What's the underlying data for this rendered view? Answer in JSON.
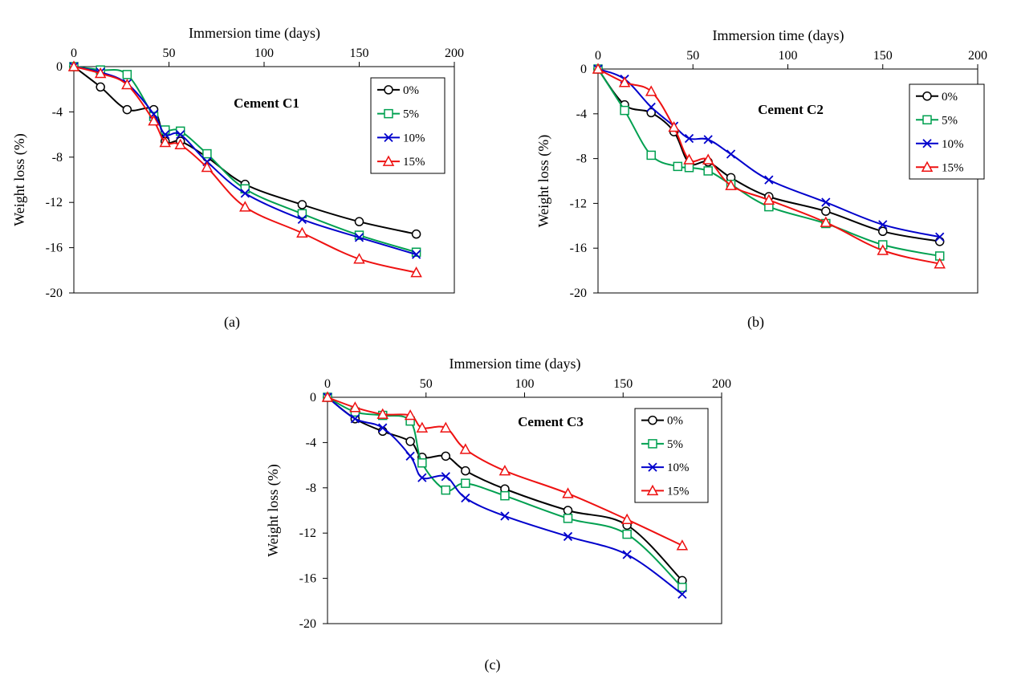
{
  "figure": {
    "captions": [
      "(a)",
      "(b)",
      "(c)"
    ]
  },
  "chart_data": [
    {
      "type": "line",
      "title": "Cement C1",
      "xlabel": "Immersion time (days)",
      "ylabel": "Weight loss (%)",
      "xlim": [
        0,
        200
      ],
      "ylim": [
        -20,
        0
      ],
      "xticks": [
        0,
        50,
        100,
        150,
        200
      ],
      "yticks": [
        0,
        -4,
        -8,
        -12,
        -16,
        -20
      ],
      "x_axis_position": "top",
      "grid": false,
      "legend_position": "top-right",
      "series": [
        {
          "name": "0%",
          "color": "#000000",
          "marker": "circle",
          "x": [
            0,
            14,
            28,
            42,
            48,
            56,
            70,
            90,
            120,
            150,
            180
          ],
          "y": [
            0,
            -1.8,
            -3.8,
            -3.8,
            -6.6,
            -6.6,
            -8.0,
            -10.4,
            -12.2,
            -13.7,
            -14.8
          ]
        },
        {
          "name": "5%",
          "color": "#00A050",
          "marker": "square",
          "x": [
            0,
            14,
            28,
            42,
            48,
            56,
            70,
            90,
            120,
            150,
            180
          ],
          "y": [
            0,
            -0.3,
            -0.7,
            -4.4,
            -5.6,
            -5.7,
            -7.7,
            -10.8,
            -13.0,
            -14.9,
            -16.4
          ]
        },
        {
          "name": "10%",
          "color": "#0000CC",
          "marker": "x",
          "x": [
            0,
            14,
            28,
            42,
            48,
            56,
            70,
            90,
            120,
            150,
            180
          ],
          "y": [
            0,
            -0.5,
            -1.5,
            -4.2,
            -6.0,
            -6.0,
            -8.4,
            -11.2,
            -13.5,
            -15.1,
            -16.6
          ]
        },
        {
          "name": "15%",
          "color": "#EE1111",
          "marker": "triangle",
          "x": [
            0,
            14,
            28,
            42,
            48,
            56,
            70,
            90,
            120,
            150,
            180
          ],
          "y": [
            0,
            -0.6,
            -1.6,
            -4.8,
            -6.7,
            -6.9,
            -8.9,
            -12.4,
            -14.7,
            -17.0,
            -18.2
          ]
        }
      ]
    },
    {
      "type": "line",
      "title": "Cement C2",
      "xlabel": "Immersion time (days)",
      "ylabel": "Weight loss (%)",
      "xlim": [
        0,
        200
      ],
      "ylim": [
        -20,
        0
      ],
      "xticks": [
        0,
        50,
        100,
        150,
        200
      ],
      "yticks": [
        0,
        -4,
        -8,
        -12,
        -16,
        -20
      ],
      "x_axis_position": "top",
      "grid": false,
      "legend_position": "top-right",
      "series": [
        {
          "name": "0%",
          "color": "#000000",
          "marker": "circle",
          "x": [
            0,
            14,
            28,
            40,
            48,
            58,
            70,
            90,
            120,
            150,
            180
          ],
          "y": [
            0,
            -3.2,
            -3.9,
            -5.6,
            -8.4,
            -8.3,
            -9.7,
            -11.4,
            -12.7,
            -14.5,
            -15.4
          ]
        },
        {
          "name": "5%",
          "color": "#00A050",
          "marker": "square",
          "x": [
            0,
            14,
            28,
            42,
            48,
            58,
            70,
            90,
            120,
            150,
            180
          ],
          "y": [
            0,
            -3.7,
            -7.7,
            -8.7,
            -8.8,
            -9.1,
            -10.3,
            -12.3,
            -13.8,
            -15.7,
            -16.7
          ]
        },
        {
          "name": "10%",
          "color": "#0000CC",
          "marker": "x",
          "x": [
            0,
            14,
            28,
            40,
            48,
            58,
            70,
            90,
            120,
            150,
            180
          ],
          "y": [
            0,
            -0.9,
            -3.4,
            -5.1,
            -6.2,
            -6.3,
            -7.6,
            -9.9,
            -11.9,
            -13.9,
            -15.0
          ]
        },
        {
          "name": "15%",
          "color": "#EE1111",
          "marker": "triangle",
          "x": [
            0,
            14,
            28,
            40,
            48,
            58,
            70,
            90,
            120,
            150,
            180
          ],
          "y": [
            0,
            -1.2,
            -2.0,
            -5.2,
            -8.1,
            -8.1,
            -10.4,
            -11.7,
            -13.7,
            -16.2,
            -17.4
          ]
        }
      ]
    },
    {
      "type": "line",
      "title": "Cement C3",
      "xlabel": "Immersion time (days)",
      "ylabel": "Weight loss (%)",
      "xlim": [
        0,
        200
      ],
      "ylim": [
        -20,
        0
      ],
      "xticks": [
        0,
        50,
        100,
        150,
        200
      ],
      "yticks": [
        0,
        -4,
        -8,
        -12,
        -16,
        -20
      ],
      "x_axis_position": "top",
      "grid": false,
      "legend_position": "top-right",
      "series": [
        {
          "name": "0%",
          "color": "#000000",
          "marker": "circle",
          "x": [
            0,
            14,
            28,
            42,
            48,
            60,
            70,
            90,
            122,
            152,
            180
          ],
          "y": [
            0,
            -1.9,
            -3.0,
            -3.9,
            -5.3,
            -5.2,
            -6.5,
            -8.1,
            -10.0,
            -11.3,
            -16.2
          ]
        },
        {
          "name": "5%",
          "color": "#00A050",
          "marker": "square",
          "x": [
            0,
            14,
            28,
            42,
            48,
            60,
            70,
            90,
            122,
            152,
            180
          ],
          "y": [
            0,
            -1.3,
            -1.6,
            -2.1,
            -5.8,
            -8.2,
            -7.6,
            -8.7,
            -10.7,
            -12.1,
            -16.8
          ]
        },
        {
          "name": "10%",
          "color": "#0000CC",
          "marker": "x",
          "x": [
            0,
            14,
            28,
            42,
            48,
            60,
            70,
            90,
            122,
            152,
            180
          ],
          "y": [
            0,
            -1.9,
            -2.7,
            -5.2,
            -7.1,
            -7.0,
            -8.9,
            -10.5,
            -12.3,
            -13.9,
            -17.4
          ]
        },
        {
          "name": "15%",
          "color": "#EE1111",
          "marker": "triangle",
          "x": [
            0,
            14,
            28,
            42,
            48,
            60,
            70,
            90,
            122,
            152,
            180
          ],
          "y": [
            0,
            -0.9,
            -1.5,
            -1.6,
            -2.7,
            -2.7,
            -4.6,
            -6.5,
            -8.5,
            -10.8,
            -13.1
          ]
        }
      ]
    }
  ]
}
